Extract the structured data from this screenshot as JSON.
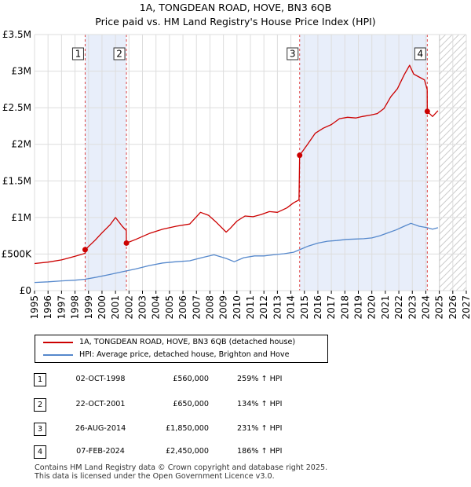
{
  "title_line1": "1A, TONGDEAN ROAD, HOVE, BN3 6QB",
  "title_line2": "Price paid vs. HM Land Registry's House Price Index (HPI)",
  "chart_data": {
    "type": "line",
    "xlim": [
      1995,
      2027
    ],
    "ylim": [
      0,
      3500000
    ],
    "y_ticks": [
      {
        "value": 0,
        "label": "£0"
      },
      {
        "value": 500000,
        "label": "£500K"
      },
      {
        "value": 1000000,
        "label": "£1M"
      },
      {
        "value": 1500000,
        "label": "£1.5M"
      },
      {
        "value": 2000000,
        "label": "£2M"
      },
      {
        "value": 2500000,
        "label": "£2.5M"
      },
      {
        "value": 3000000,
        "label": "£3M"
      },
      {
        "value": 3500000,
        "label": "£3.5M"
      }
    ],
    "x_ticks": [
      "1995",
      "1996",
      "1997",
      "1998",
      "1999",
      "2000",
      "2001",
      "2002",
      "2003",
      "2004",
      "2005",
      "2006",
      "2007",
      "2008",
      "2009",
      "2010",
      "2011",
      "2012",
      "2013",
      "2014",
      "2015",
      "2016",
      "2017",
      "2018",
      "2019",
      "2020",
      "2021",
      "2022",
      "2023",
      "2024",
      "2025",
      "2026",
      "2027"
    ],
    "forecast_from": 2025.0,
    "series": [
      {
        "name": "1A, TONGDEAN ROAD, HOVE, BN3 6QB (detached house)",
        "color": "#cc0000",
        "x": [
          1995.0,
          1996.0,
          1997.0,
          1998.0,
          1998.75,
          1998.76,
          1999.5,
          2000.0,
          2000.6,
          2001.0,
          2001.5,
          2001.8,
          2001.81,
          2002.5,
          2003.5,
          2004.5,
          2005.5,
          2006.5,
          2007.3,
          2007.9,
          2008.5,
          2009.2,
          2009.5,
          2010.0,
          2010.6,
          2011.2,
          2011.8,
          2012.4,
          2013.0,
          2013.7,
          2014.2,
          2014.6,
          2014.65,
          2015.2,
          2015.8,
          2016.4,
          2017.0,
          2017.6,
          2018.2,
          2018.8,
          2019.3,
          2019.9,
          2020.4,
          2020.9,
          2021.4,
          2021.9,
          2022.4,
          2022.8,
          2023.1,
          2023.5,
          2023.9,
          2024.1,
          2024.11,
          2024.5,
          2024.9
        ],
        "values": [
          370000,
          390000,
          420000,
          470000,
          510000,
          560000,
          690000,
          790000,
          900000,
          1000000,
          880000,
          820000,
          650000,
          700000,
          780000,
          840000,
          880000,
          910000,
          1070000,
          1030000,
          930000,
          800000,
          850000,
          950000,
          1020000,
          1010000,
          1040000,
          1080000,
          1070000,
          1130000,
          1200000,
          1240000,
          1850000,
          1990000,
          2150000,
          2220000,
          2270000,
          2350000,
          2370000,
          2360000,
          2380000,
          2400000,
          2420000,
          2490000,
          2650000,
          2760000,
          2950000,
          3080000,
          2960000,
          2920000,
          2880000,
          2750000,
          2450000,
          2380000,
          2460000
        ]
      },
      {
        "name": "HPI: Average price, detached house, Brighton and Hove",
        "color": "#5588cc",
        "x": [
          1995.0,
          1996.0,
          1997.0,
          1998.0,
          1998.75,
          1999.5,
          2000.5,
          2001.5,
          2002.5,
          2003.5,
          2004.5,
          2005.5,
          2006.5,
          2007.5,
          2008.3,
          2009.2,
          2009.8,
          2010.5,
          2011.3,
          2012.0,
          2012.7,
          2013.5,
          2014.2,
          2014.65,
          2015.3,
          2016.0,
          2016.7,
          2017.4,
          2018.1,
          2018.8,
          2019.4,
          2020.0,
          2020.6,
          2021.2,
          2021.8,
          2022.4,
          2022.9,
          2023.5,
          2024.1,
          2024.5,
          2024.9
        ],
        "values": [
          112000,
          120000,
          133000,
          143000,
          156000,
          180000,
          218000,
          258000,
          296000,
          343000,
          378000,
          395000,
          408000,
          455000,
          490000,
          440000,
          395000,
          450000,
          475000,
          475000,
          490000,
          505000,
          525000,
          559000,
          610000,
          650000,
          675000,
          685000,
          700000,
          705000,
          710000,
          720000,
          750000,
          790000,
          830000,
          880000,
          920000,
          880000,
          860000,
          840000,
          860000
        ]
      }
    ],
    "sales": [
      {
        "n": "1",
        "x": 1998.75,
        "value": 560000
      },
      {
        "n": "2",
        "x": 2001.81,
        "value": 650000
      },
      {
        "n": "3",
        "x": 2014.65,
        "value": 1850000
      },
      {
        "n": "4",
        "x": 2024.11,
        "value": 2450000
      }
    ]
  },
  "legend": {
    "property": "1A, TONGDEAN ROAD, HOVE, BN3 6QB (detached house)",
    "hpi": "HPI: Average price, detached house, Brighton and Hove",
    "property_color": "#cc0000",
    "hpi_color": "#5588cc"
  },
  "transactions": [
    {
      "n": "1",
      "date": "02-OCT-1998",
      "price": "£560,000",
      "hpi": "259% ↑ HPI"
    },
    {
      "n": "2",
      "date": "22-OCT-2001",
      "price": "£650,000",
      "hpi": "134% ↑ HPI"
    },
    {
      "n": "3",
      "date": "26-AUG-2014",
      "price": "£1,850,000",
      "hpi": "231% ↑ HPI"
    },
    {
      "n": "4",
      "date": "07-FEB-2024",
      "price": "£2,450,000",
      "hpi": "186% ↑ HPI"
    }
  ],
  "footer_line1": "Contains HM Land Registry data © Crown copyright and database right 2025.",
  "footer_line2": "This data is licensed under the Open Government Licence v3.0."
}
